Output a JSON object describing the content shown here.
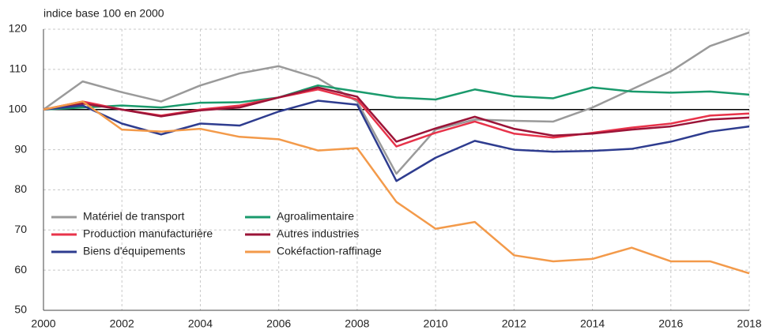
{
  "chart_data": {
    "type": "line",
    "y_label": "indice base 100 en 2000",
    "x": [
      2000,
      2001,
      2002,
      2003,
      2004,
      2005,
      2006,
      2007,
      2008,
      2009,
      2010,
      2011,
      2012,
      2013,
      2014,
      2015,
      2016,
      2017,
      2018
    ],
    "series": [
      {
        "name": "Matériel de transport",
        "color": "#9a9a9a",
        "values": [
          100,
          107,
          104.3,
          102,
          106,
          109,
          110.8,
          107.8,
          102,
          84,
          95,
          97.5,
          97.2,
          97,
          100.5,
          105,
          109.5,
          115.8,
          119.2
        ]
      },
      {
        "name": "Agroalimentaire",
        "color": "#1a9a6c",
        "values": [
          100,
          100.5,
          101,
          100.5,
          101.7,
          101.8,
          103,
          106,
          104.5,
          103,
          102.5,
          105,
          103.3,
          102.8,
          105.5,
          104.5,
          104.2,
          104.5,
          103.7
        ]
      },
      {
        "name": "Production manufacturière",
        "color": "#e8334a",
        "values": [
          100,
          102,
          100,
          98.5,
          100,
          101,
          103,
          105,
          102.5,
          90.8,
          94.2,
          97,
          94,
          93,
          94.2,
          95.5,
          96.5,
          98.5,
          99
        ]
      },
      {
        "name": "Autres industries",
        "color": "#9b1438",
        "values": [
          100,
          101.5,
          100,
          98.3,
          99.8,
          100.5,
          103,
          105.5,
          103.2,
          92,
          95.3,
          98.2,
          95.2,
          93.5,
          94,
          95,
          95.8,
          97.5,
          98
        ]
      },
      {
        "name": "Biens d'équipements",
        "color": "#2e3c8f",
        "values": [
          100,
          101,
          96.5,
          93.8,
          96.5,
          96,
          99.5,
          102.2,
          101.2,
          82.2,
          88,
          92.2,
          90,
          89.5,
          89.7,
          90.2,
          92,
          94.5,
          95.8
        ]
      },
      {
        "name": "Cokéfaction-raffinage",
        "color": "#f39a4a",
        "values": [
          100,
          102,
          95,
          94.5,
          95.2,
          93.2,
          92.6,
          89.8,
          90.4,
          77,
          70.3,
          72,
          63.7,
          62.2,
          62.8,
          65.6,
          62.2,
          62.2,
          59.2
        ]
      }
    ],
    "xlim": [
      2000,
      2018
    ],
    "xticks": [
      2000,
      2002,
      2004,
      2006,
      2008,
      2010,
      2012,
      2014,
      2016,
      2018
    ],
    "ylim": [
      50,
      120
    ],
    "yticks": [
      50,
      60,
      70,
      80,
      90,
      100,
      110,
      120
    ],
    "reference_line": 100,
    "grid": true,
    "legend": "lower-left"
  }
}
